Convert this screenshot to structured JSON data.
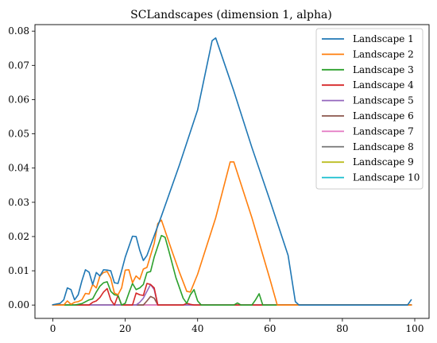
{
  "chart_data": {
    "type": "line",
    "title": "SCLandscapes (dimension 1, alpha)",
    "xlabel": "",
    "ylabel": "",
    "xlim": [
      -4.95,
      103.95
    ],
    "ylim": [
      -0.0039,
      0.0819
    ],
    "xticks": [
      0,
      20,
      40,
      60,
      80,
      100
    ],
    "yticks": [
      0.0,
      0.01,
      0.02,
      0.03,
      0.04,
      0.05,
      0.06,
      0.07,
      0.08
    ],
    "grid": false,
    "legend_position": "top-right",
    "series": [
      {
        "name": "Landscape 1",
        "color": "#1f77b4",
        "x": [
          0,
          2,
          3,
          4,
          5,
          6,
          7,
          8,
          9,
          10,
          11,
          12,
          13,
          14,
          15,
          16,
          17,
          18,
          19,
          20,
          22,
          23,
          24,
          25,
          26,
          30,
          35,
          40,
          44,
          45,
          50,
          55,
          60,
          65,
          67,
          68,
          98,
          99
        ],
        "y": [
          0.0001,
          0.0005,
          0.0015,
          0.005,
          0.0045,
          0.0015,
          0.003,
          0.007,
          0.0103,
          0.0096,
          0.006,
          0.0095,
          0.0085,
          0.0103,
          0.0102,
          0.01,
          0.0065,
          0.0063,
          0.01,
          0.014,
          0.0201,
          0.02,
          0.016,
          0.013,
          0.0145,
          0.026,
          0.041,
          0.057,
          0.0772,
          0.078,
          0.0625,
          0.046,
          0.0305,
          0.0145,
          0.001,
          0.0,
          0.0,
          0.0015
        ]
      },
      {
        "name": "Landscape 2",
        "color": "#ff7f0e",
        "x": [
          0,
          3,
          4,
          5,
          6,
          7,
          8,
          9,
          10,
          11,
          12,
          13,
          14,
          15,
          16,
          17,
          18,
          19,
          20,
          21,
          22,
          23,
          24,
          25,
          26,
          27,
          28,
          29,
          30,
          33,
          35,
          37,
          38,
          40,
          45,
          49,
          50,
          55,
          60,
          62,
          99
        ],
        "y": [
          0.0,
          0.0,
          0.0012,
          0.0002,
          0.0008,
          0.001,
          0.0015,
          0.0034,
          0.0032,
          0.006,
          0.005,
          0.0085,
          0.0095,
          0.0098,
          0.0078,
          0.0035,
          0.003,
          0.005,
          0.0102,
          0.0103,
          0.0065,
          0.0085,
          0.0075,
          0.0105,
          0.011,
          0.0145,
          0.018,
          0.0238,
          0.0248,
          0.0155,
          0.0095,
          0.004,
          0.0038,
          0.009,
          0.0255,
          0.0418,
          0.0418,
          0.0255,
          0.0075,
          0.0,
          0.0
        ]
      },
      {
        "name": "Landscape 3",
        "color": "#2ca02c",
        "x": [
          0,
          6,
          8,
          10,
          11,
          12,
          13,
          14,
          15,
          16,
          17,
          18,
          19,
          20,
          21,
          22,
          23,
          24,
          25,
          26,
          27,
          28,
          29,
          30,
          31,
          32,
          34,
          36,
          37,
          38,
          39,
          40,
          41,
          50,
          51,
          52,
          55,
          56,
          57,
          58,
          99
        ],
        "y": [
          0.0,
          0.0,
          0.0004,
          0.0015,
          0.0018,
          0.0038,
          0.0055,
          0.0065,
          0.0068,
          0.004,
          0.003,
          0.0028,
          0.0,
          0.0005,
          0.0035,
          0.0063,
          0.0045,
          0.005,
          0.006,
          0.0095,
          0.0098,
          0.014,
          0.0172,
          0.0203,
          0.0198,
          0.016,
          0.008,
          0.002,
          0.0005,
          0.003,
          0.0045,
          0.0012,
          0.0,
          0.0,
          0.0006,
          0.0,
          0.0,
          0.0015,
          0.0033,
          0.0,
          0.0
        ]
      },
      {
        "name": "Landscape 4",
        "color": "#d62728",
        "x": [
          0,
          10,
          11,
          12,
          13,
          14,
          15,
          16,
          17,
          18,
          19,
          20,
          22,
          23,
          24,
          25,
          26,
          27,
          28,
          29,
          30,
          31,
          36,
          37,
          38,
          39,
          99
        ],
        "y": [
          0.0,
          0.0,
          0.0008,
          0.0012,
          0.0022,
          0.0038,
          0.0048,
          0.0015,
          0.0,
          0.0028,
          0.0,
          0.0,
          0.0,
          0.0035,
          0.003,
          0.0028,
          0.0063,
          0.006,
          0.005,
          0.0,
          0.0,
          0.0,
          0.0,
          0.0005,
          0.0002,
          0.0,
          0.0
        ]
      },
      {
        "name": "Landscape 5",
        "color": "#9467bd",
        "x": [
          0,
          23,
          24,
          25,
          26,
          27,
          28,
          29,
          30,
          99
        ],
        "y": [
          0.0,
          0.0,
          0.0008,
          0.002,
          0.004,
          0.006,
          0.0045,
          0.0,
          0.0,
          0.0
        ]
      },
      {
        "name": "Landscape 6",
        "color": "#8c564b",
        "x": [
          0,
          25,
          26,
          27,
          28,
          29,
          99
        ],
        "y": [
          0.0,
          0.0,
          0.0012,
          0.0025,
          0.002,
          0.0,
          0.0
        ]
      },
      {
        "name": "Landscape 7",
        "color": "#e377c2",
        "x": [
          0,
          99
        ],
        "y": [
          0.0,
          0.0
        ]
      },
      {
        "name": "Landscape 8",
        "color": "#7f7f7f",
        "x": [
          0,
          99
        ],
        "y": [
          0.0,
          0.0
        ]
      },
      {
        "name": "Landscape 9",
        "color": "#bcbd22",
        "x": [
          0,
          99
        ],
        "y": [
          0.0,
          0.0
        ]
      },
      {
        "name": "Landscape 10",
        "color": "#17becf",
        "x": [
          0,
          99
        ],
        "y": [
          0.0,
          0.0
        ]
      }
    ]
  }
}
